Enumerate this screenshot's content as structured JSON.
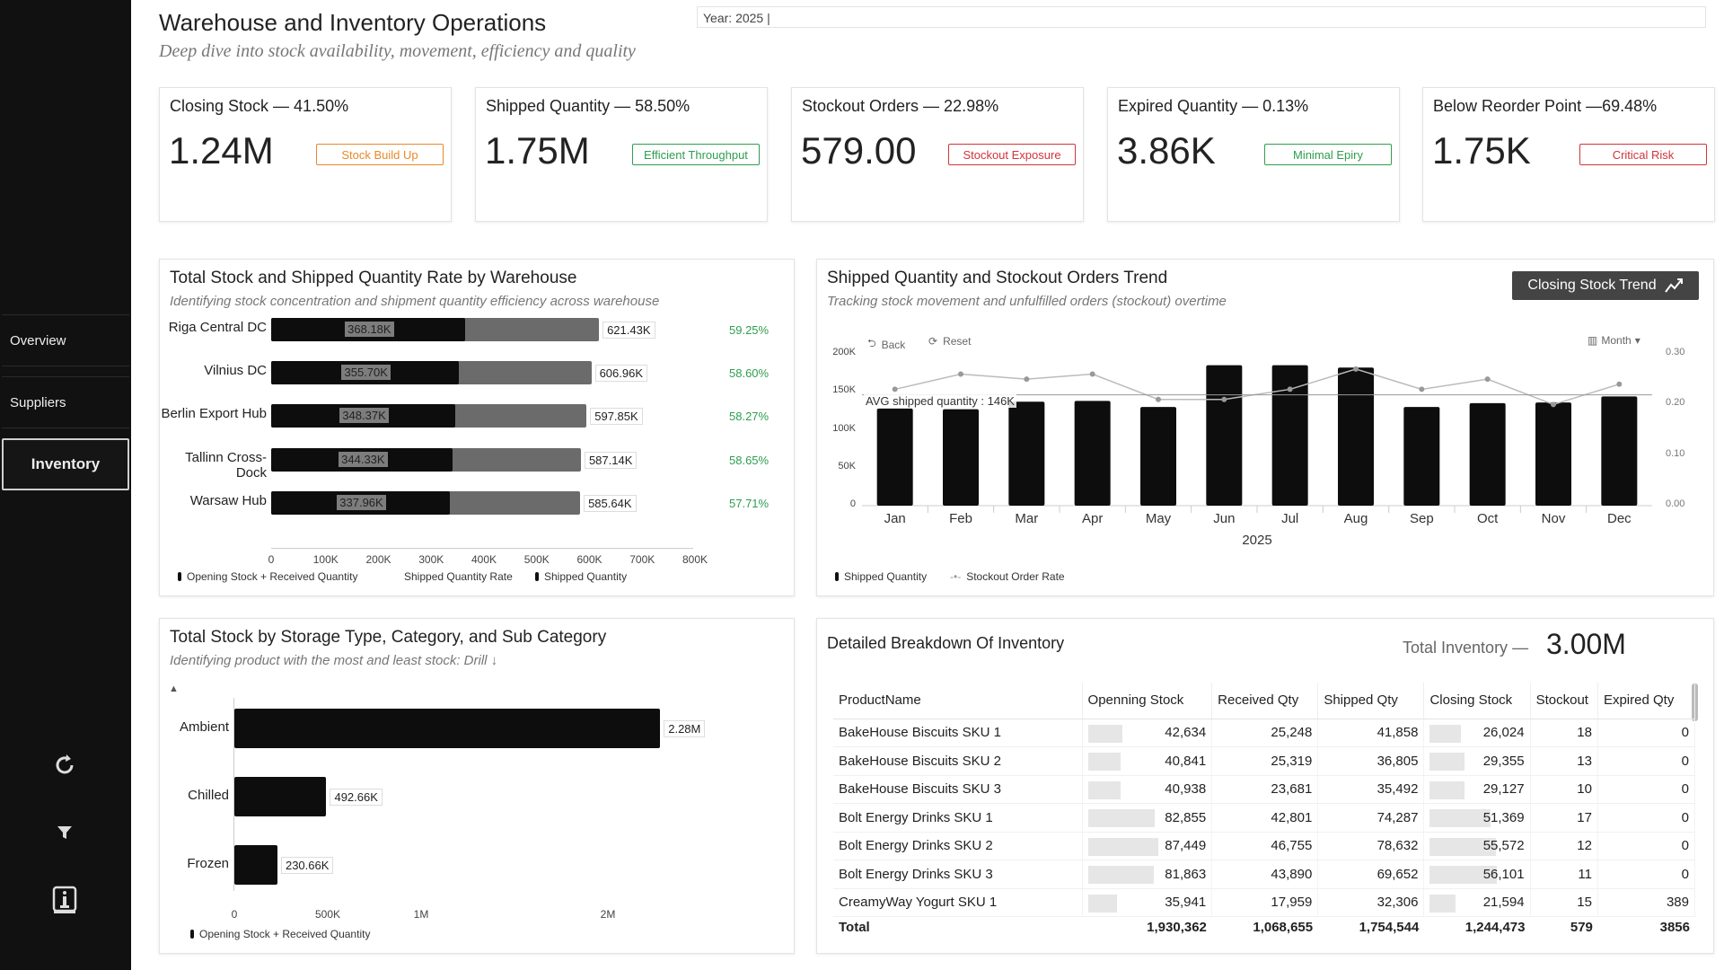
{
  "header": {
    "title": "Warehouse and Inventory Operations",
    "subtitle": "Deep dive into stock availability, movement, efficiency and quality",
    "year_slicer": "Year: 2025 |"
  },
  "sidebar": {
    "items": [
      {
        "label": "Overview"
      },
      {
        "label": "Suppliers"
      },
      {
        "label": "Inventory"
      }
    ],
    "icons": [
      "refresh-icon",
      "filter-icon",
      "info-icon"
    ]
  },
  "kpis": [
    {
      "title": "Closing Stock — 41.50%",
      "value": "1.24M",
      "badge": "Stock Build Up",
      "color": "#e8892a"
    },
    {
      "title": "Shipped Quantity — 58.50%",
      "value": "1.75M",
      "badge": "Efficient Throughput",
      "color": "#2e9e4f"
    },
    {
      "title": "Stockout Orders — 22.98%",
      "value": "579.00",
      "badge": "Stockout Exposure",
      "color": "#d1343b"
    },
    {
      "title": "Expired Quantity — 0.13%",
      "value": "3.86K",
      "badge": "Minimal Epiry",
      "color": "#2e9e4f"
    },
    {
      "title": "Below Reorder Point —69.48%",
      "value": "1.75K",
      "badge": "Critical Risk",
      "color": "#d1343b"
    }
  ],
  "warehouse_panel": {
    "title": "Total Stock and Shipped Quantity Rate by Warehouse",
    "subtitle": "Identifying stock concentration and shipment quantity efficiency across warehouse",
    "legend": [
      "Opening Stock + Received Quantity",
      "Shipped Quantity Rate",
      "Shipped Quantity"
    ]
  },
  "trend_panel": {
    "title": "Shipped Quantity and Stockout Orders Trend",
    "subtitle": "Tracking stock movement and unfulfilled orders (stockout) overtime",
    "button": "Closing Stock Trend",
    "back": "Back",
    "reset": "Reset",
    "granularity": "Month",
    "avg_label": "AVG shipped quantity : 146K",
    "x_title": "2025",
    "legend": [
      "Shipped Quantity",
      "Stockout Order Rate"
    ]
  },
  "storage_panel": {
    "title": "Total Stock by Storage Type, Category, and Sub Category",
    "subtitle": "Identifying product with the most and least stock: Drill ↓",
    "legend": [
      "Opening Stock + Received Quantity"
    ]
  },
  "table_panel": {
    "title": "Detailed Breakdown Of Inventory",
    "total_label": "Total Inventory —",
    "total_value": "3.00M",
    "columns": [
      "ProductName",
      "Openning Stock",
      "Received Qty",
      "Shipped Qty",
      "Closing Stock",
      "Stockout",
      "Expired Qty"
    ],
    "rows": [
      [
        "BakeHouse Biscuits SKU 1",
        "42,634",
        "25,248",
        "41,858",
        "26,024",
        "18",
        "0"
      ],
      [
        "BakeHouse Biscuits SKU 2",
        "40,841",
        "25,319",
        "36,805",
        "29,355",
        "13",
        "0"
      ],
      [
        "BakeHouse Biscuits SKU 3",
        "40,938",
        "23,681",
        "35,492",
        "29,127",
        "10",
        "0"
      ],
      [
        "Bolt Energy Drinks SKU 1",
        "82,855",
        "42,801",
        "74,287",
        "51,369",
        "17",
        "0"
      ],
      [
        "Bolt Energy Drinks SKU 2",
        "87,449",
        "46,755",
        "78,632",
        "55,572",
        "12",
        "0"
      ],
      [
        "Bolt Energy Drinks SKU 3",
        "81,863",
        "43,890",
        "69,652",
        "56,101",
        "11",
        "0"
      ],
      [
        "CreamyWay Yogurt SKU 1",
        "35,941",
        "17,959",
        "32,306",
        "21,594",
        "15",
        "389"
      ]
    ],
    "totals": [
      "Total",
      "1,930,362",
      "1,068,655",
      "1,754,544",
      "1,244,473",
      "579",
      "3856"
    ]
  },
  "chart_data": [
    {
      "type": "bar",
      "orientation": "horizontal",
      "categories": [
        "Riga Central DC",
        "Vilnius DC",
        "Berlin Export Hub",
        "Tallinn Cross-Dock",
        "Warsaw Hub"
      ],
      "series": [
        {
          "name": "Opening Stock + Received Quantity",
          "values": [
            621430,
            606960,
            597850,
            587140,
            585640
          ],
          "labels": [
            "621.43K",
            "606.96K",
            "597.85K",
            "587.14K",
            "585.64K"
          ]
        },
        {
          "name": "Shipped Quantity",
          "values": [
            368180,
            355700,
            348370,
            344330,
            337960
          ],
          "labels": [
            "368.18K",
            "355.70K",
            "348.37K",
            "344.33K",
            "337.96K"
          ]
        },
        {
          "name": "Shipped Quantity Rate",
          "values": [
            59.25,
            58.6,
            58.27,
            58.65,
            57.71
          ],
          "labels": [
            "59.25%",
            "58.60%",
            "58.27%",
            "58.65%",
            "57.71%"
          ]
        }
      ],
      "xlim": [
        0,
        800000
      ],
      "xticks": [
        "0",
        "100K",
        "200K",
        "300K",
        "400K",
        "500K",
        "600K",
        "700K",
        "800K"
      ]
    },
    {
      "type": "bar",
      "categories": [
        "Jan",
        "Feb",
        "Mar",
        "Apr",
        "May",
        "Jun",
        "Jul",
        "Aug",
        "Sep",
        "Oct",
        "Nov",
        "Dec"
      ],
      "series": [
        {
          "name": "Shipped Quantity",
          "axis": "left",
          "values": [
            128000,
            127000,
            137000,
            138000,
            130000,
            185000,
            185000,
            182000,
            130000,
            135000,
            136000,
            144000
          ]
        },
        {
          "name": "Stockout Order Rate",
          "axis": "right",
          "type": "line",
          "values": [
            0.23,
            0.26,
            0.25,
            0.26,
            0.21,
            0.21,
            0.23,
            0.27,
            0.23,
            0.25,
            0.2,
            0.24
          ]
        }
      ],
      "avg_line": 146000,
      "ylim": [
        0,
        200000
      ],
      "yticks": [
        "0",
        "50K",
        "100K",
        "150K",
        "200K"
      ],
      "y2lim": [
        0,
        0.3
      ],
      "y2ticks": [
        "0.00",
        "0.10",
        "0.20",
        "0.30"
      ],
      "xlabel": "2025"
    },
    {
      "type": "bar",
      "orientation": "horizontal",
      "categories": [
        "Ambient",
        "Chilled",
        "Frozen"
      ],
      "series": [
        {
          "name": "Opening Stock + Received Quantity",
          "values": [
            2280000,
            492660,
            230660
          ],
          "labels": [
            "2.28M",
            "492.66K",
            "230.66K"
          ]
        }
      ],
      "xlim": [
        0,
        2500000
      ],
      "xticks": [
        "0",
        "500K",
        "1M",
        "2M"
      ]
    }
  ]
}
